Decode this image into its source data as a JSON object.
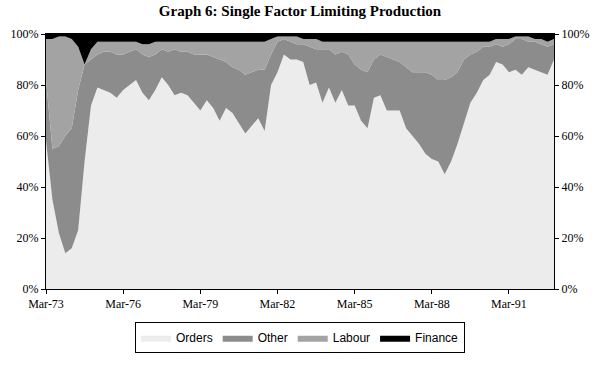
{
  "chart_data": {
    "type": "area",
    "title": "Graph 6: Single Factor Limiting Production",
    "stacked": true,
    "legend": "bottom",
    "categories": [
      "Mar-73",
      null,
      null,
      null,
      null,
      null,
      null,
      null,
      null,
      null,
      null,
      null,
      "Mar-76",
      null,
      null,
      null,
      null,
      null,
      null,
      null,
      null,
      null,
      null,
      null,
      "Mar-79",
      null,
      null,
      null,
      null,
      null,
      null,
      null,
      null,
      null,
      null,
      null,
      "Mar-82",
      null,
      null,
      null,
      null,
      null,
      null,
      null,
      null,
      null,
      null,
      null,
      "Mar-85",
      null,
      null,
      null,
      null,
      null,
      null,
      null,
      null,
      null,
      null,
      null,
      "Mar-88",
      null,
      null,
      null,
      null,
      null,
      null,
      null,
      null,
      null,
      null,
      null,
      "Mar-91",
      null,
      null,
      null,
      null,
      null,
      null,
      null
    ],
    "series": [
      {
        "name": "Orders",
        "color": "#ececec",
        "values": [
          58,
          35,
          22,
          14,
          16,
          23,
          50,
          72,
          79,
          78,
          77,
          75,
          78,
          80,
          82,
          77,
          74,
          78,
          83,
          80,
          76,
          77,
          76,
          73,
          70,
          74,
          71,
          66,
          71,
          69,
          65,
          61,
          64,
          67,
          62,
          80,
          85,
          92,
          90,
          90,
          89,
          80,
          81,
          73,
          79,
          73,
          78,
          72,
          72,
          66,
          63,
          75,
          76,
          70,
          70,
          70,
          63,
          60,
          57,
          53,
          51,
          50,
          45,
          50,
          57,
          65,
          73,
          77,
          82,
          84,
          89,
          88,
          85,
          86,
          84,
          87,
          86,
          85,
          84,
          90
        ]
      },
      {
        "name": "Other",
        "color": "#8c8c8c",
        "values": [
          24,
          20,
          34,
          46,
          47,
          55,
          38,
          18,
          13,
          15,
          16,
          17,
          14,
          13,
          12,
          15,
          17,
          14,
          11,
          13,
          18,
          16,
          17,
          19,
          22,
          18,
          20,
          24,
          18,
          18,
          21,
          23,
          21,
          19,
          24,
          12,
          12,
          6,
          7,
          6,
          7,
          15,
          13,
          21,
          15,
          19,
          15,
          20,
          16,
          20,
          22,
          15,
          16,
          21,
          20,
          19,
          24,
          25,
          28,
          32,
          33,
          32,
          37,
          33,
          28,
          25,
          19,
          16,
          13,
          11,
          7,
          7,
          11,
          12,
          14,
          10,
          11,
          11,
          11,
          6
        ]
      },
      {
        "name": "Labour",
        "color": "#a3a3a3",
        "values": [
          16,
          43,
          43,
          39,
          35,
          17,
          0,
          4,
          5,
          4,
          4,
          5,
          5,
          4,
          3,
          4,
          5,
          5,
          3,
          4,
          3,
          4,
          4,
          5,
          5,
          5,
          6,
          7,
          8,
          10,
          11,
          13,
          12,
          11,
          11,
          6,
          2,
          1,
          2,
          3,
          2,
          3,
          4,
          3,
          3,
          5,
          4,
          5,
          9,
          11,
          12,
          7,
          5,
          6,
          7,
          8,
          10,
          12,
          12,
          12,
          13,
          15,
          15,
          14,
          12,
          7,
          5,
          4,
          2,
          2,
          2,
          3,
          2,
          1,
          1,
          2,
          1,
          2,
          2,
          2
        ]
      },
      {
        "name": "Finance",
        "color": "#000000",
        "values": [
          2,
          2,
          1,
          1,
          2,
          5,
          12,
          6,
          3,
          3,
          3,
          3,
          3,
          3,
          3,
          4,
          4,
          3,
          3,
          3,
          3,
          3,
          3,
          3,
          3,
          3,
          3,
          3,
          3,
          3,
          3,
          3,
          3,
          3,
          3,
          2,
          1,
          1,
          1,
          1,
          2,
          2,
          2,
          3,
          3,
          3,
          3,
          3,
          3,
          3,
          3,
          3,
          3,
          3,
          3,
          3,
          3,
          3,
          3,
          3,
          3,
          3,
          3,
          3,
          3,
          3,
          3,
          3,
          3,
          3,
          2,
          2,
          2,
          1,
          1,
          1,
          2,
          2,
          3,
          2
        ]
      }
    ],
    "ylim": [
      0,
      100
    ],
    "yticks": [
      {
        "value": 0,
        "label": "0%"
      },
      {
        "value": 20,
        "label": "20%"
      },
      {
        "value": 40,
        "label": "40%"
      },
      {
        "value": 60,
        "label": "60%"
      },
      {
        "value": 80,
        "label": "80%"
      },
      {
        "value": 100,
        "label": "100%"
      }
    ],
    "grid": false
  }
}
